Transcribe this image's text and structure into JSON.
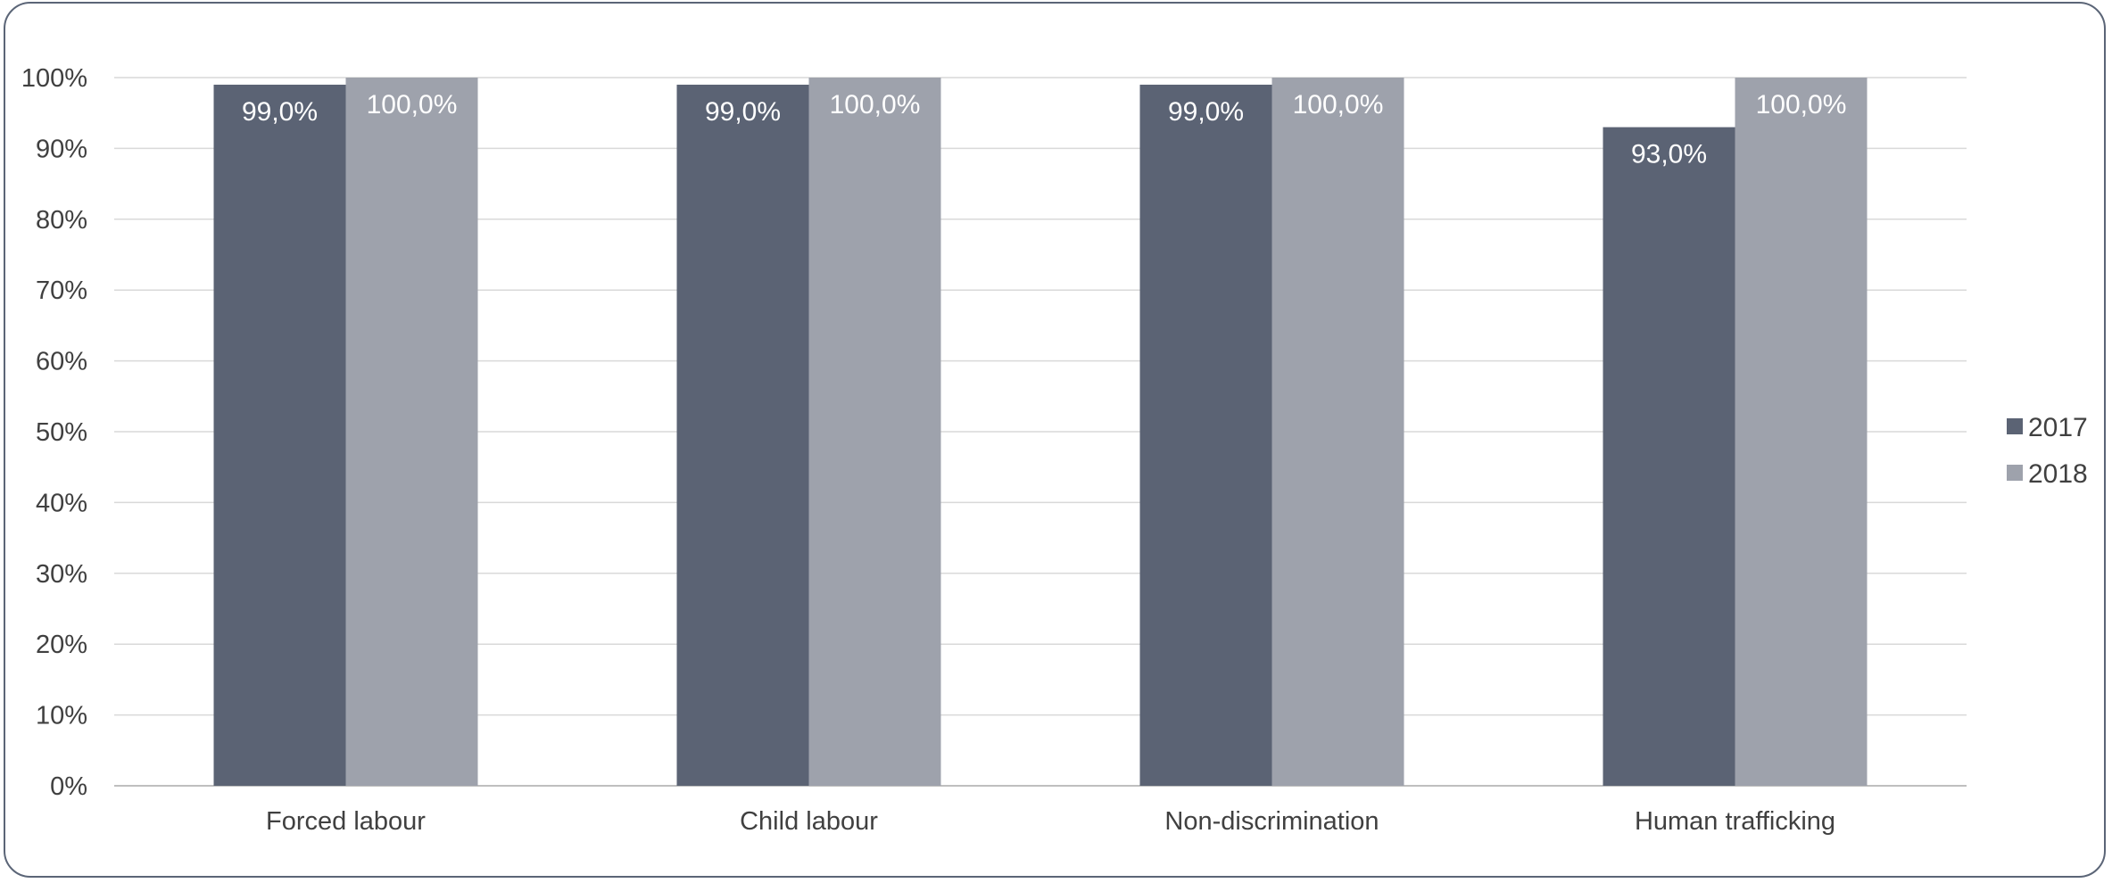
{
  "chart_data": {
    "type": "bar",
    "categories": [
      "Forced labour",
      "Child labour",
      "Non-discrimination",
      "Human trafficking"
    ],
    "series": [
      {
        "name": "2017",
        "values": [
          99.0,
          99.0,
          99.0,
          93.0
        ],
        "labels": [
          "99,0%",
          "99,0%",
          "99,0%",
          "93,0%"
        ],
        "color": "#5b6374"
      },
      {
        "name": "2018",
        "values": [
          100.0,
          100.0,
          100.0,
          100.0
        ],
        "labels": [
          "100,0%",
          "100,0%",
          "100,0%",
          "100,0%"
        ],
        "color": "#9ea2ac"
      }
    ],
    "yticks": [
      "0%",
      "10%",
      "20%",
      "30%",
      "40%",
      "50%",
      "60%",
      "70%",
      "80%",
      "90%",
      "100%"
    ],
    "ylim": [
      0,
      100
    ],
    "title": "",
    "xlabel": "",
    "ylabel": "",
    "grid": true,
    "legend_position": "right",
    "gridline_color": "#d9d9d9",
    "axis_color": "#bfbfbf"
  }
}
